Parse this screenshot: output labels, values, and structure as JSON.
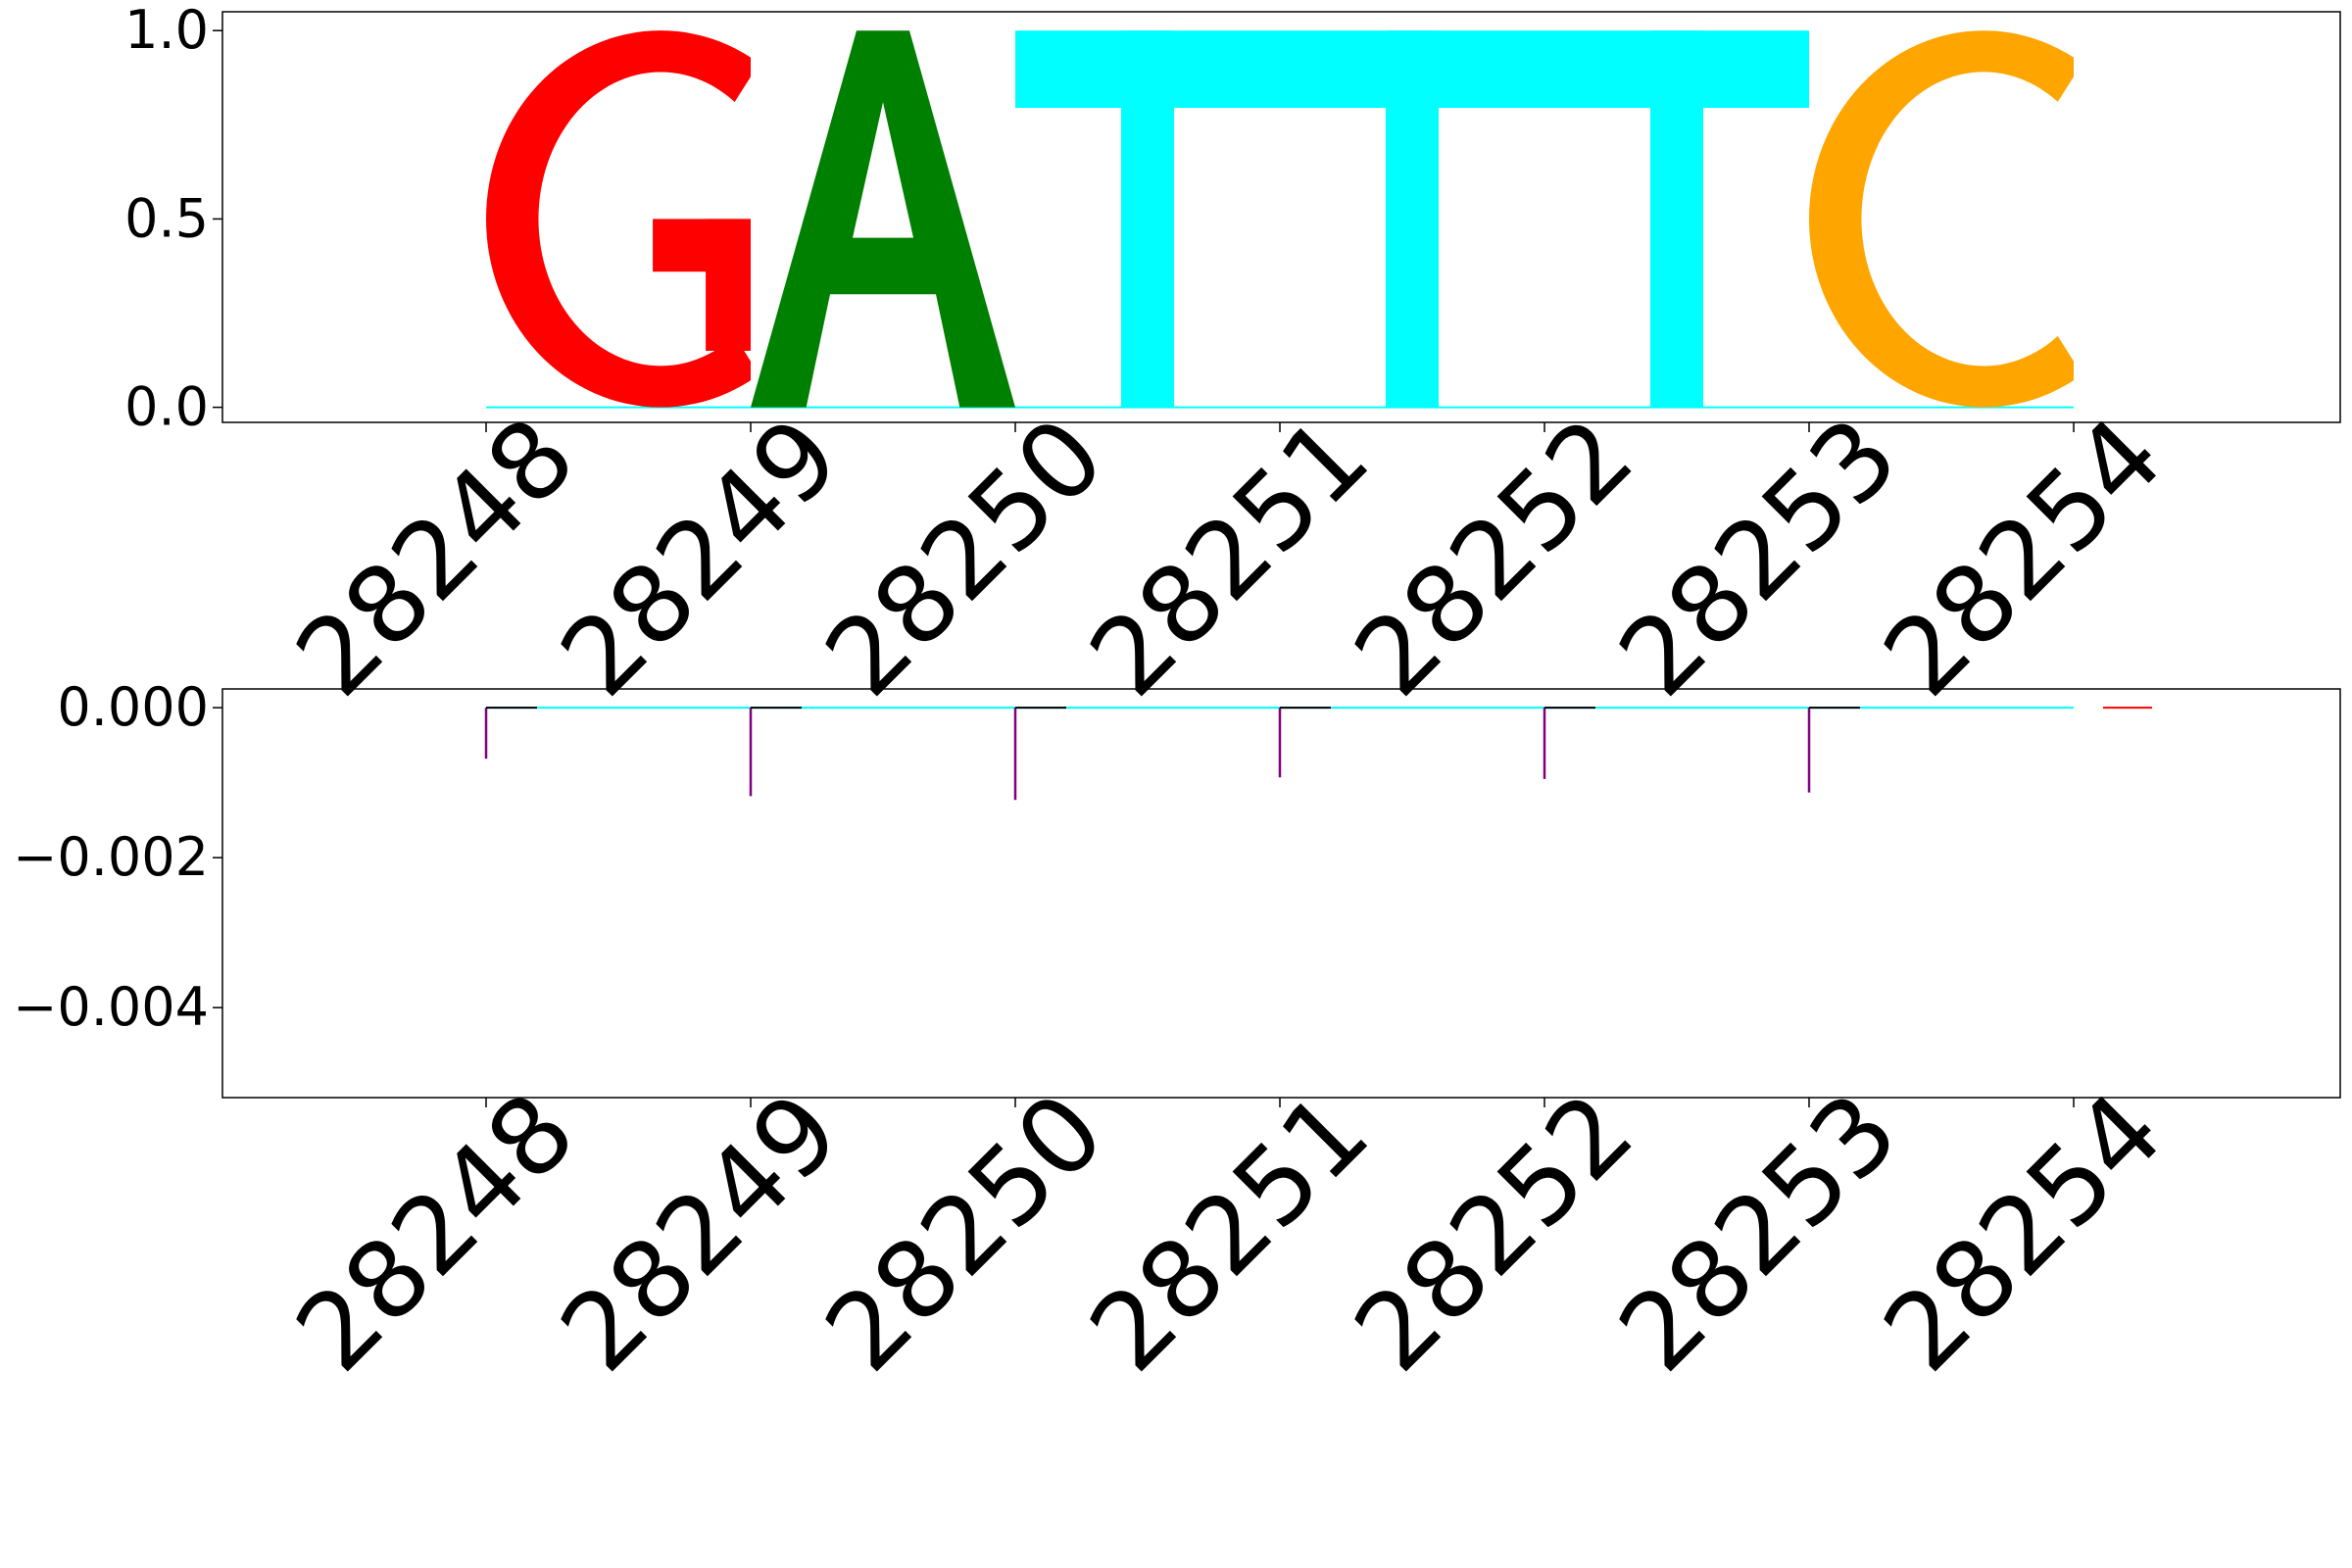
{
  "chart_data": [
    {
      "type": "sequence-logo",
      "ylim": [
        -0.04,
        1.05
      ],
      "yticks": [
        {
          "value": 0.0,
          "label": "0.0"
        },
        {
          "value": 0.5,
          "label": "0.5"
        },
        {
          "value": 1.0,
          "label": "1.0"
        }
      ],
      "x_ticks": [
        "28248",
        "28249",
        "28250",
        "28251",
        "28252",
        "28253",
        "28254"
      ],
      "letters": [
        {
          "position": "28248",
          "base": "G",
          "value": 1.0,
          "color": "#ff0000"
        },
        {
          "position": "28249",
          "base": "A",
          "value": 1.0,
          "color": "#008000"
        },
        {
          "position": "28250",
          "base": "T",
          "value": 1.0,
          "color": "#00ffff"
        },
        {
          "position": "28251",
          "base": "T",
          "value": 1.0,
          "color": "#00ffff"
        },
        {
          "position": "28252",
          "base": "T",
          "value": 1.0,
          "color": "#00ffff"
        },
        {
          "position": "28253",
          "base": "C",
          "value": 1.0,
          "color": "#ffa500"
        }
      ],
      "grid": false,
      "legend": "none"
    },
    {
      "type": "bar",
      "ylim": [
        -0.0052,
        0.00025
      ],
      "yticks": [
        {
          "value": 0.0,
          "label": "0.000"
        },
        {
          "value": -0.002,
          "label": "−0.002"
        },
        {
          "value": -0.004,
          "label": "−0.004"
        }
      ],
      "x_ticks": [
        "28248",
        "28249",
        "28250",
        "28251",
        "28252",
        "28253",
        "28254"
      ],
      "values": [
        {
          "position": "28248",
          "value": -0.00068,
          "color": "#800080"
        },
        {
          "position": "28249",
          "value": -0.00118,
          "color": "#800080"
        },
        {
          "position": "28250",
          "value": -0.00123,
          "color": "#800080"
        },
        {
          "position": "28251",
          "value": -0.00093,
          "color": "#800080"
        },
        {
          "position": "28252",
          "value": -0.00095,
          "color": "#800080"
        },
        {
          "position": "28253",
          "value": -0.00113,
          "color": "#800080"
        }
      ],
      "grid": false,
      "legend": "none"
    }
  ]
}
